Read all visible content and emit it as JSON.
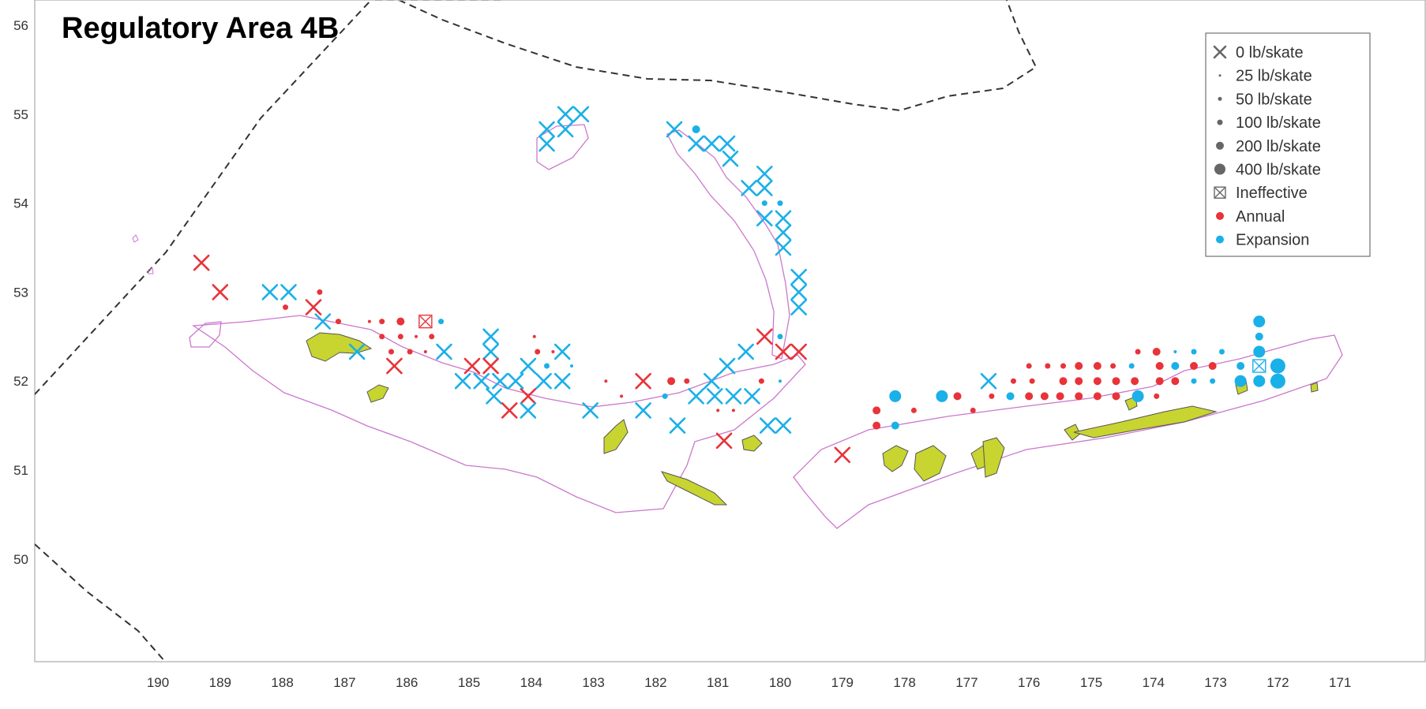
{
  "title": "Regulatory Area 4B",
  "chart_data": {
    "type": "scatter",
    "title": "Regulatory Area 4B",
    "x_ticks": [
      "190",
      "189",
      "188",
      "187",
      "186",
      "185",
      "184",
      "183",
      "182",
      "181",
      "180",
      "179",
      "178",
      "177",
      "176",
      "175",
      "174",
      "173",
      "172",
      "171"
    ],
    "y_ticks": [
      "56",
      "55",
      "54",
      "53",
      "52",
      "51",
      "50"
    ],
    "legend": [
      {
        "label": "0 lb/skate",
        "symbol": "x"
      },
      {
        "label": "25 lb/skate",
        "symbol": "dot-1"
      },
      {
        "label": "50 lb/skate",
        "symbol": "dot-2"
      },
      {
        "label": "100 lb/skate",
        "symbol": "dot-3"
      },
      {
        "label": "200 lb/skate",
        "symbol": "dot-4"
      },
      {
        "label": "400 lb/skate",
        "symbol": "dot-5"
      },
      {
        "label": "Ineffective",
        "symbol": "boxed-x"
      },
      {
        "label": "Annual",
        "symbol": "red-dot"
      },
      {
        "label": "Expansion",
        "symbol": "blue-dot"
      }
    ],
    "colors": {
      "annual": "#e8333a",
      "expansion": "#1ab0e8",
      "land": "#c8d430",
      "depth_contour": "#cc77cc",
      "boundary": "#333333"
    },
    "stations": [
      {
        "lon": 189.3,
        "lat": 53.33,
        "type": "annual",
        "catch": 0
      },
      {
        "lon": 189.0,
        "lat": 53.0,
        "type": "annual",
        "catch": 0
      },
      {
        "lon": 188.2,
        "lat": 53.0,
        "type": "expansion",
        "catch": 0
      },
      {
        "lon": 187.9,
        "lat": 53.0,
        "type": "expansion",
        "catch": 0
      },
      {
        "lon": 187.5,
        "lat": 52.83,
        "type": "annual",
        "catch": 0
      },
      {
        "lon": 187.35,
        "lat": 52.67,
        "type": "expansion",
        "catch": 0
      },
      {
        "lon": 186.8,
        "lat": 52.33,
        "type": "expansion",
        "catch": 0
      },
      {
        "lon": 186.2,
        "lat": 52.17,
        "type": "annual",
        "catch": 0
      },
      {
        "lon": 185.4,
        "lat": 52.33,
        "type": "expansion",
        "catch": 0
      },
      {
        "lon": 184.95,
        "lat": 52.17,
        "type": "annual",
        "catch": 0
      },
      {
        "lon": 184.65,
        "lat": 52.5,
        "type": "expansion",
        "catch": 0
      },
      {
        "lon": 184.65,
        "lat": 52.33,
        "type": "expansion",
        "catch": 0
      },
      {
        "lon": 184.65,
        "lat": 52.17,
        "type": "annual",
        "catch": 0
      },
      {
        "lon": 185.1,
        "lat": 52.0,
        "type": "expansion",
        "catch": 0
      },
      {
        "lon": 184.8,
        "lat": 52.0,
        "type": "expansion",
        "catch": 0
      },
      {
        "lon": 184.5,
        "lat": 52.0,
        "type": "expansion",
        "catch": 0
      },
      {
        "lon": 184.25,
        "lat": 52.0,
        "type": "expansion",
        "catch": 0
      },
      {
        "lon": 184.6,
        "lat": 51.83,
        "type": "expansion",
        "catch": 0
      },
      {
        "lon": 184.05,
        "lat": 51.83,
        "type": "annual",
        "catch": 0
      },
      {
        "lon": 184.35,
        "lat": 51.67,
        "type": "annual",
        "catch": 0
      },
      {
        "lon": 184.05,
        "lat": 51.67,
        "type": "expansion",
        "catch": 0
      },
      {
        "lon": 184.05,
        "lat": 52.17,
        "type": "expansion",
        "catch": 0
      },
      {
        "lon": 183.8,
        "lat": 52.0,
        "type": "expansion",
        "catch": 0
      },
      {
        "lon": 183.5,
        "lat": 52.0,
        "type": "expansion",
        "catch": 0
      },
      {
        "lon": 183.5,
        "lat": 52.33,
        "type": "expansion",
        "catch": 0
      },
      {
        "lon": 183.05,
        "lat": 51.67,
        "type": "expansion",
        "catch": 0
      },
      {
        "lon": 182.2,
        "lat": 52.0,
        "type": "annual",
        "catch": 0
      },
      {
        "lon": 182.2,
        "lat": 51.67,
        "type": "expansion",
        "catch": 0
      },
      {
        "lon": 181.65,
        "lat": 51.5,
        "type": "expansion",
        "catch": 0
      },
      {
        "lon": 180.9,
        "lat": 51.33,
        "type": "annual",
        "catch": 0
      },
      {
        "lon": 181.35,
        "lat": 51.83,
        "type": "expansion",
        "catch": 0
      },
      {
        "lon": 181.05,
        "lat": 51.83,
        "type": "expansion",
        "catch": 0
      },
      {
        "lon": 180.75,
        "lat": 51.83,
        "type": "expansion",
        "catch": 0
      },
      {
        "lon": 180.45,
        "lat": 51.83,
        "type": "expansion",
        "catch": 0
      },
      {
        "lon": 181.1,
        "lat": 52.0,
        "type": "expansion",
        "catch": 0
      },
      {
        "lon": 180.85,
        "lat": 52.17,
        "type": "expansion",
        "catch": 0
      },
      {
        "lon": 180.55,
        "lat": 52.33,
        "type": "expansion",
        "catch": 0
      },
      {
        "lon": 180.25,
        "lat": 52.5,
        "type": "annual",
        "catch": 0
      },
      {
        "lon": 179.95,
        "lat": 52.33,
        "type": "annual",
        "catch": 0
      },
      {
        "lon": 179.7,
        "lat": 52.33,
        "type": "annual",
        "catch": 0
      },
      {
        "lon": 180.2,
        "lat": 51.5,
        "type": "expansion",
        "catch": 0
      },
      {
        "lon": 179.95,
        "lat": 51.5,
        "type": "expansion",
        "catch": 0
      },
      {
        "lon": 179.0,
        "lat": 51.17,
        "type": "annual",
        "catch": 0
      },
      {
        "lon": 183.75,
        "lat": 54.83,
        "type": "expansion",
        "catch": 0
      },
      {
        "lon": 183.75,
        "lat": 54.67,
        "type": "expansion",
        "catch": 0
      },
      {
        "lon": 183.45,
        "lat": 55.0,
        "type": "expansion",
        "catch": 0
      },
      {
        "lon": 183.45,
        "lat": 54.83,
        "type": "expansion",
        "catch": 0
      },
      {
        "lon": 183.2,
        "lat": 55.0,
        "type": "expansion",
        "catch": 0
      },
      {
        "lon": 181.7,
        "lat": 54.83,
        "type": "expansion",
        "catch": 0
      },
      {
        "lon": 181.35,
        "lat": 54.67,
        "type": "expansion",
        "catch": 0
      },
      {
        "lon": 181.1,
        "lat": 54.67,
        "type": "expansion",
        "catch": 0
      },
      {
        "lon": 180.85,
        "lat": 54.67,
        "type": "expansion",
        "catch": 0
      },
      {
        "lon": 180.8,
        "lat": 54.5,
        "type": "expansion",
        "catch": 0
      },
      {
        "lon": 180.25,
        "lat": 54.33,
        "type": "expansion",
        "catch": 0
      },
      {
        "lon": 180.5,
        "lat": 54.17,
        "type": "expansion",
        "catch": 0
      },
      {
        "lon": 180.25,
        "lat": 54.17,
        "type": "expansion",
        "catch": 0
      },
      {
        "lon": 180.25,
        "lat": 53.83,
        "type": "expansion",
        "catch": 0
      },
      {
        "lon": 179.95,
        "lat": 53.83,
        "type": "expansion",
        "catch": 0
      },
      {
        "lon": 179.95,
        "lat": 53.67,
        "type": "expansion",
        "catch": 0
      },
      {
        "lon": 179.95,
        "lat": 53.5,
        "type": "expansion",
        "catch": 0
      },
      {
        "lon": 179.7,
        "lat": 53.17,
        "type": "expansion",
        "catch": 0
      },
      {
        "lon": 179.7,
        "lat": 53.0,
        "type": "expansion",
        "catch": 0
      },
      {
        "lon": 179.7,
        "lat": 52.83,
        "type": "expansion",
        "catch": 0
      },
      {
        "lon": 176.65,
        "lat": 52.0,
        "type": "expansion",
        "catch": 0
      },
      {
        "lon": 185.7,
        "lat": 52.67,
        "type": "annual",
        "catch": "ineffective"
      },
      {
        "lon": 172.3,
        "lat": 52.17,
        "type": "expansion",
        "catch": "ineffective"
      },
      {
        "lon": 187.95,
        "lat": 52.83,
        "type": "annual",
        "catch": 50
      },
      {
        "lon": 187.4,
        "lat": 53.0,
        "type": "annual",
        "catch": 50
      },
      {
        "lon": 187.1,
        "lat": 52.67,
        "type": "annual",
        "catch": 50
      },
      {
        "lon": 186.6,
        "lat": 52.67,
        "type": "annual",
        "catch": 25
      },
      {
        "lon": 186.4,
        "lat": 52.67,
        "type": "annual",
        "catch": 50
      },
      {
        "lon": 186.1,
        "lat": 52.67,
        "type": "annual",
        "catch": 100
      },
      {
        "lon": 186.4,
        "lat": 52.5,
        "type": "annual",
        "catch": 50
      },
      {
        "lon": 186.1,
        "lat": 52.5,
        "type": "annual",
        "catch": 50
      },
      {
        "lon": 185.85,
        "lat": 52.5,
        "type": "annual",
        "catch": 25
      },
      {
        "lon": 185.6,
        "lat": 52.5,
        "type": "annual",
        "catch": 50
      },
      {
        "lon": 186.25,
        "lat": 52.33,
        "type": "annual",
        "catch": 50
      },
      {
        "lon": 185.95,
        "lat": 52.33,
        "type": "annual",
        "catch": 50
      },
      {
        "lon": 185.7,
        "lat": 52.33,
        "type": "annual",
        "catch": 25
      },
      {
        "lon": 185.45,
        "lat": 52.67,
        "type": "expansion",
        "catch": 50
      },
      {
        "lon": 183.9,
        "lat": 52.33,
        "type": "annual",
        "catch": 50
      },
      {
        "lon": 183.95,
        "lat": 52.5,
        "type": "annual",
        "catch": 25
      },
      {
        "lon": 183.65,
        "lat": 52.33,
        "type": "annual",
        "catch": 25
      },
      {
        "lon": 183.75,
        "lat": 52.17,
        "type": "expansion",
        "catch": 50
      },
      {
        "lon": 183.35,
        "lat": 52.17,
        "type": "expansion",
        "catch": 25
      },
      {
        "lon": 182.8,
        "lat": 52.0,
        "type": "annual",
        "catch": 25
      },
      {
        "lon": 182.55,
        "lat": 51.83,
        "type": "annual",
        "catch": 25
      },
      {
        "lon": 181.85,
        "lat": 51.83,
        "type": "expansion",
        "catch": 50
      },
      {
        "lon": 181.5,
        "lat": 52.0,
        "type": "annual",
        "catch": 50
      },
      {
        "lon": 181.75,
        "lat": 52.0,
        "type": "annual",
        "catch": 100
      },
      {
        "lon": 180.75,
        "lat": 51.67,
        "type": "annual",
        "catch": 25
      },
      {
        "lon": 181.0,
        "lat": 51.67,
        "type": "annual",
        "catch": 25
      },
      {
        "lon": 180.0,
        "lat": 52.5,
        "type": "expansion",
        "catch": 50
      },
      {
        "lon": 180.3,
        "lat": 52.0,
        "type": "annual",
        "catch": 50
      },
      {
        "lon": 180.0,
        "lat": 52.0,
        "type": "expansion",
        "catch": 25
      },
      {
        "lon": 181.35,
        "lat": 54.83,
        "type": "expansion",
        "catch": 100
      },
      {
        "lon": 180.0,
        "lat": 54.0,
        "type": "expansion",
        "catch": 50
      },
      {
        "lon": 180.25,
        "lat": 54.0,
        "type": "expansion",
        "catch": 50
      },
      {
        "lon": 178.45,
        "lat": 51.67,
        "type": "annual",
        "catch": 100
      },
      {
        "lon": 178.45,
        "lat": 51.5,
        "type": "annual",
        "catch": 100
      },
      {
        "lon": 178.15,
        "lat": 51.83,
        "type": "expansion",
        "catch": 200
      },
      {
        "lon": 178.15,
        "lat": 51.5,
        "type": "expansion",
        "catch": 100
      },
      {
        "lon": 177.85,
        "lat": 51.67,
        "type": "annual",
        "catch": 50
      },
      {
        "lon": 177.4,
        "lat": 51.83,
        "type": "expansion",
        "catch": 200
      },
      {
        "lon": 177.15,
        "lat": 51.83,
        "type": "annual",
        "catch": 100
      },
      {
        "lon": 176.9,
        "lat": 51.67,
        "type": "annual",
        "catch": 50
      },
      {
        "lon": 176.6,
        "lat": 51.83,
        "type": "annual",
        "catch": 50
      },
      {
        "lon": 176.3,
        "lat": 51.83,
        "type": "expansion",
        "catch": 100
      },
      {
        "lon": 176.0,
        "lat": 51.83,
        "type": "annual",
        "catch": 100
      },
      {
        "lon": 175.75,
        "lat": 51.83,
        "type": "annual",
        "catch": 100
      },
      {
        "lon": 175.5,
        "lat": 51.83,
        "type": "annual",
        "catch": 100
      },
      {
        "lon": 175.2,
        "lat": 51.83,
        "type": "annual",
        "catch": 100
      },
      {
        "lon": 174.9,
        "lat": 51.83,
        "type": "annual",
        "catch": 100
      },
      {
        "lon": 174.6,
        "lat": 51.83,
        "type": "annual",
        "catch": 100
      },
      {
        "lon": 174.25,
        "lat": 51.83,
        "type": "expansion",
        "catch": 200
      },
      {
        "lon": 173.95,
        "lat": 51.83,
        "type": "annual",
        "catch": 50
      },
      {
        "lon": 176.25,
        "lat": 52.0,
        "type": "annual",
        "catch": 50
      },
      {
        "lon": 175.95,
        "lat": 52.0,
        "type": "annual",
        "catch": 50
      },
      {
        "lon": 175.45,
        "lat": 52.0,
        "type": "annual",
        "catch": 100
      },
      {
        "lon": 175.2,
        "lat": 52.0,
        "type": "annual",
        "catch": 100
      },
      {
        "lon": 174.9,
        "lat": 52.0,
        "type": "annual",
        "catch": 100
      },
      {
        "lon": 174.6,
        "lat": 52.0,
        "type": "annual",
        "catch": 100
      },
      {
        "lon": 174.3,
        "lat": 52.0,
        "type": "annual",
        "catch": 100
      },
      {
        "lon": 173.9,
        "lat": 52.0,
        "type": "annual",
        "catch": 100
      },
      {
        "lon": 173.65,
        "lat": 52.0,
        "type": "annual",
        "catch": 100
      },
      {
        "lon": 173.35,
        "lat": 52.0,
        "type": "expansion",
        "catch": 50
      },
      {
        "lon": 173.05,
        "lat": 52.0,
        "type": "expansion",
        "catch": 50
      },
      {
        "lon": 172.6,
        "lat": 52.0,
        "type": "expansion",
        "catch": 200
      },
      {
        "lon": 172.3,
        "lat": 52.0,
        "type": "expansion",
        "catch": 200
      },
      {
        "lon": 172.0,
        "lat": 52.0,
        "type": "expansion",
        "catch": 400
      },
      {
        "lon": 176.0,
        "lat": 52.17,
        "type": "annual",
        "catch": 50
      },
      {
        "lon": 175.7,
        "lat": 52.17,
        "type": "annual",
        "catch": 50
      },
      {
        "lon": 175.45,
        "lat": 52.17,
        "type": "annual",
        "catch": 50
      },
      {
        "lon": 175.2,
        "lat": 52.17,
        "type": "annual",
        "catch": 100
      },
      {
        "lon": 174.9,
        "lat": 52.17,
        "type": "annual",
        "catch": 100
      },
      {
        "lon": 174.65,
        "lat": 52.17,
        "type": "annual",
        "catch": 50
      },
      {
        "lon": 174.35,
        "lat": 52.17,
        "type": "expansion",
        "catch": 50
      },
      {
        "lon": 173.9,
        "lat": 52.17,
        "type": "annual",
        "catch": 100
      },
      {
        "lon": 173.65,
        "lat": 52.17,
        "type": "expansion",
        "catch": 100
      },
      {
        "lon": 173.35,
        "lat": 52.17,
        "type": "annual",
        "catch": 100
      },
      {
        "lon": 173.05,
        "lat": 52.17,
        "type": "annual",
        "catch": 100
      },
      {
        "lon": 172.6,
        "lat": 52.17,
        "type": "expansion",
        "catch": 100
      },
      {
        "lon": 172.0,
        "lat": 52.17,
        "type": "expansion",
        "catch": 400
      },
      {
        "lon": 174.25,
        "lat": 52.33,
        "type": "annual",
        "catch": 50
      },
      {
        "lon": 173.95,
        "lat": 52.33,
        "type": "annual",
        "catch": 100
      },
      {
        "lon": 173.35,
        "lat": 52.33,
        "type": "expansion",
        "catch": 50
      },
      {
        "lon": 172.9,
        "lat": 52.33,
        "type": "expansion",
        "catch": 50
      },
      {
        "lon": 172.3,
        "lat": 52.33,
        "type": "expansion",
        "catch": 200
      },
      {
        "lon": 172.3,
        "lat": 52.5,
        "type": "expansion",
        "catch": 100
      },
      {
        "lon": 172.3,
        "lat": 52.67,
        "type": "expansion",
        "catch": 200
      },
      {
        "lon": 173.65,
        "lat": 52.33,
        "type": "expansion",
        "catch": 25
      }
    ]
  }
}
